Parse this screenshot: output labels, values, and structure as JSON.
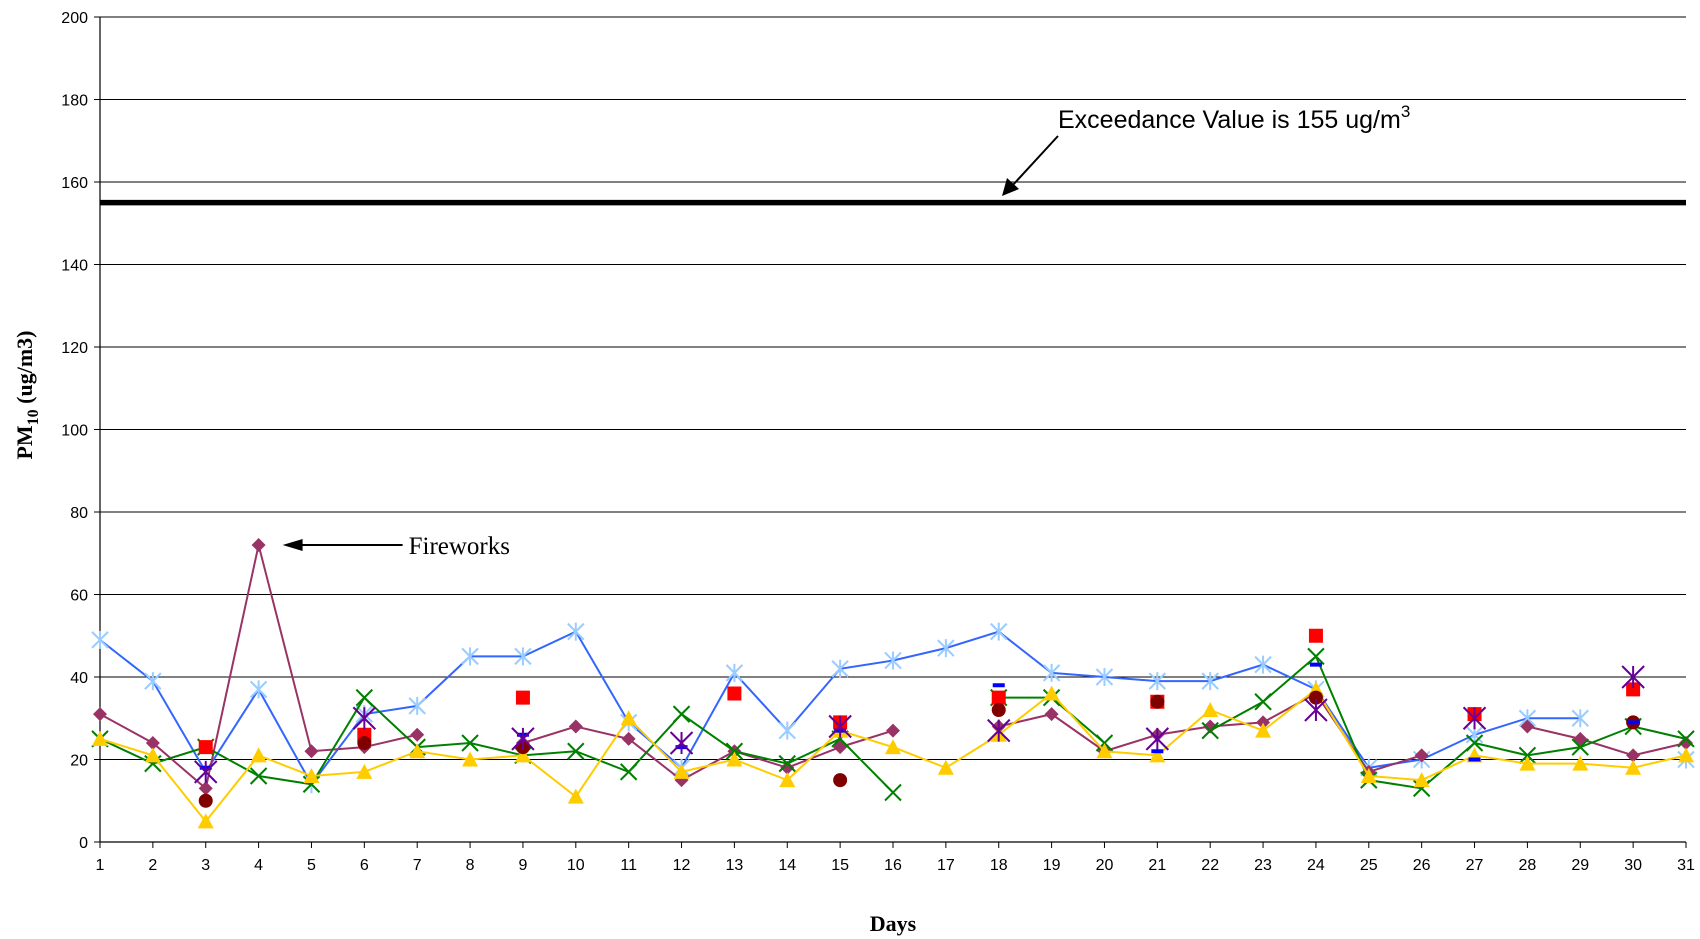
{
  "chart_data": {
    "type": "line",
    "xlabel": "Days",
    "ylabel_main": "PM",
    "ylabel_sub": "10",
    "ylabel_unit": " (ug/m3)",
    "categories": [
      "1",
      "2",
      "3",
      "4",
      "5",
      "6",
      "7",
      "8",
      "9",
      "10",
      "11",
      "12",
      "13",
      "14",
      "15",
      "16",
      "17",
      "18",
      "19",
      "20",
      "21",
      "22",
      "23",
      "24",
      "25",
      "26",
      "27",
      "28",
      "29",
      "30",
      "31"
    ],
    "ylim": [
      0,
      200
    ],
    "yticks": [
      "0",
      "20",
      "40",
      "60",
      "80",
      "100",
      "120",
      "140",
      "160",
      "180",
      "200"
    ],
    "grid": true,
    "threshold": {
      "value": 155,
      "label": "Exceedance Value is 155 ug/m",
      "label_sup": "3",
      "color": "#000000"
    },
    "annotations": [
      {
        "text": "Fireworks",
        "x": 4,
        "y": 72
      }
    ],
    "series": [
      {
        "marker": "asterisk",
        "color": "#3366FF",
        "marker_color": "#99CCFF",
        "values": [
          49,
          39,
          17,
          37,
          14,
          31,
          33,
          45,
          45,
          51,
          29,
          18,
          41,
          27,
          42,
          44,
          47,
          51,
          41,
          40,
          39,
          39,
          43,
          37,
          18,
          20,
          26,
          30,
          30,
          null,
          20
        ]
      },
      {
        "marker": "diamond",
        "color": "#993366",
        "marker_color": "#993366",
        "values": [
          31,
          24,
          13,
          72,
          22,
          23,
          26,
          null,
          24,
          28,
          25,
          15,
          22,
          18,
          23,
          27,
          null,
          28,
          31,
          22,
          26,
          28,
          29,
          36,
          17,
          21,
          null,
          28,
          25,
          21,
          24
        ]
      },
      {
        "marker": "x",
        "color": "#008000",
        "marker_color": "#008000",
        "values": [
          25,
          19,
          23,
          16,
          14,
          35,
          23,
          24,
          21,
          22,
          17,
          31,
          22,
          19,
          25,
          12,
          null,
          35,
          35,
          24,
          null,
          27,
          34,
          45,
          15,
          13,
          24,
          21,
          23,
          28,
          25
        ]
      },
      {
        "marker": "triangle",
        "color": "#FFCC00",
        "marker_color": "#FFCC00",
        "values": [
          25,
          21,
          5,
          21,
          16,
          17,
          22,
          20,
          21,
          11,
          30,
          17,
          20,
          15,
          27,
          23,
          18,
          26,
          36,
          22,
          21,
          32,
          27,
          37,
          16,
          15,
          21,
          19,
          19,
          18,
          21
        ]
      },
      {
        "marker": "square",
        "color": "#FF0000",
        "marker_color": "#FF0000",
        "values": [
          null,
          null,
          23,
          null,
          null,
          26,
          null,
          null,
          35,
          null,
          null,
          null,
          36,
          null,
          29,
          null,
          null,
          35,
          null,
          null,
          34,
          null,
          null,
          50,
          null,
          null,
          31,
          null,
          null,
          37,
          null
        ]
      },
      {
        "marker": "circle",
        "color": "#800000",
        "marker_color": "#800000",
        "values": [
          null,
          null,
          10,
          null,
          null,
          24,
          null,
          null,
          23,
          null,
          null,
          null,
          null,
          null,
          15,
          null,
          null,
          32,
          null,
          null,
          34,
          null,
          null,
          35,
          null,
          null,
          null,
          null,
          null,
          29,
          null
        ]
      },
      {
        "marker": "dash",
        "color": "#0000FF",
        "marker_color": "#0000FF",
        "values": [
          null,
          null,
          18,
          null,
          null,
          null,
          null,
          null,
          26,
          null,
          null,
          23,
          null,
          null,
          27,
          null,
          null,
          38,
          null,
          null,
          22,
          null,
          null,
          43,
          null,
          null,
          20,
          null,
          null,
          29,
          null
        ]
      },
      {
        "marker": "star",
        "color": "#660099",
        "marker_color": "#660099",
        "values": [
          null,
          null,
          17,
          null,
          null,
          30,
          null,
          null,
          25,
          null,
          null,
          24,
          null,
          null,
          28,
          null,
          null,
          27,
          null,
          null,
          25,
          null,
          null,
          32,
          null,
          null,
          30,
          null,
          null,
          40,
          null
        ]
      }
    ]
  }
}
